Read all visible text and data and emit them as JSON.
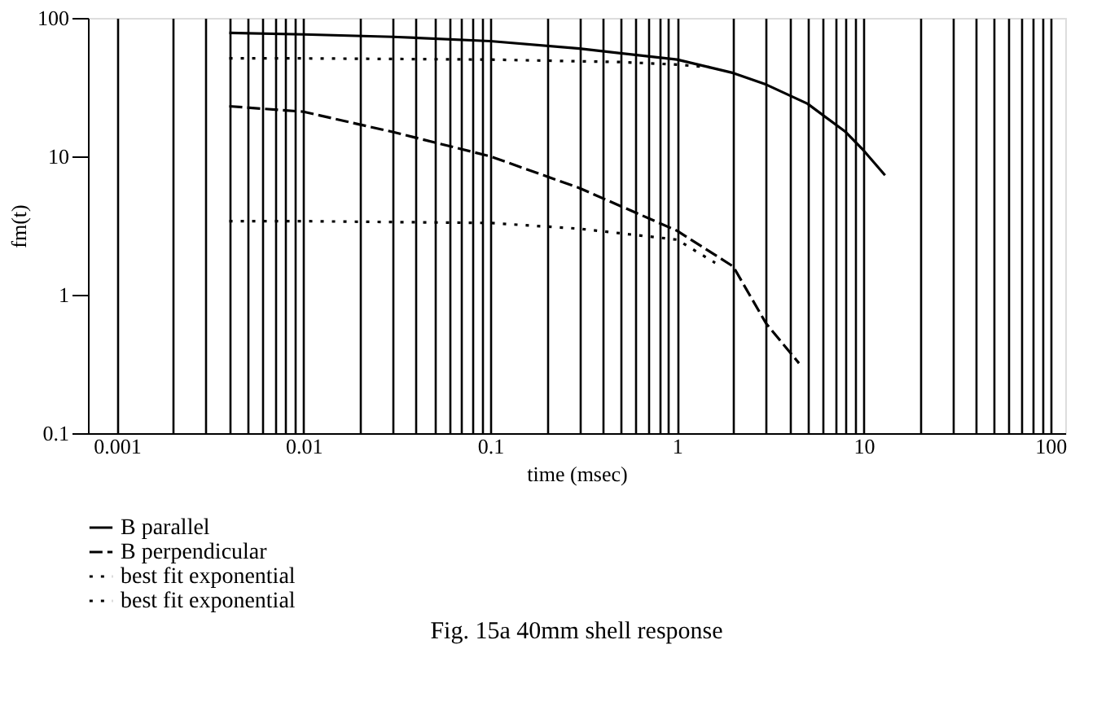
{
  "chart_data": {
    "type": "line",
    "title": "Fig. 15a  40mm shell response",
    "xlabel": "time (msec)",
    "ylabel": "fm(t)",
    "log": "xy",
    "grid": "x",
    "legend": "bottom",
    "xlim": [
      0.0007,
      120
    ],
    "ylim": [
      0.1,
      100
    ],
    "xticks": [
      {
        "value": 0.001,
        "label": "0.001"
      },
      {
        "value": 0.002,
        "label": null
      },
      {
        "value": 0.003,
        "label": null
      },
      {
        "value": 0.004,
        "label": null
      },
      {
        "value": 0.005,
        "label": null
      },
      {
        "value": 0.006,
        "label": null
      },
      {
        "value": 0.007,
        "label": null
      },
      {
        "value": 0.008,
        "label": null
      },
      {
        "value": 0.009,
        "label": null
      },
      {
        "value": 0.01,
        "label": "0.01"
      },
      {
        "value": 0.02,
        "label": null
      },
      {
        "value": 0.03,
        "label": null
      },
      {
        "value": 0.04,
        "label": null
      },
      {
        "value": 0.05,
        "label": null
      },
      {
        "value": 0.06,
        "label": null
      },
      {
        "value": 0.07,
        "label": null
      },
      {
        "value": 0.08,
        "label": null
      },
      {
        "value": 0.09,
        "label": null
      },
      {
        "value": 0.1,
        "label": "0.1"
      },
      {
        "value": 0.2,
        "label": null
      },
      {
        "value": 0.3,
        "label": null
      },
      {
        "value": 0.4,
        "label": null
      },
      {
        "value": 0.5,
        "label": null
      },
      {
        "value": 0.6,
        "label": null
      },
      {
        "value": 0.7,
        "label": null
      },
      {
        "value": 0.8,
        "label": null
      },
      {
        "value": 0.9,
        "label": null
      },
      {
        "value": 1,
        "label": "1"
      },
      {
        "value": 2,
        "label": null
      },
      {
        "value": 3,
        "label": null
      },
      {
        "value": 4,
        "label": null
      },
      {
        "value": 5,
        "label": null
      },
      {
        "value": 6,
        "label": null
      },
      {
        "value": 7,
        "label": null
      },
      {
        "value": 8,
        "label": null
      },
      {
        "value": 9,
        "label": null
      },
      {
        "value": 10,
        "label": "10"
      },
      {
        "value": 20,
        "label": null
      },
      {
        "value": 30,
        "label": null
      },
      {
        "value": 40,
        "label": null
      },
      {
        "value": 50,
        "label": null
      },
      {
        "value": 60,
        "label": null
      },
      {
        "value": 70,
        "label": null
      },
      {
        "value": 80,
        "label": null
      },
      {
        "value": 90,
        "label": null
      },
      {
        "value": 100,
        "label": "100"
      }
    ],
    "yticks": [
      0.1,
      1,
      10,
      100
    ],
    "series": [
      {
        "name": "B parallel",
        "color": "#000000",
        "line_style": "solid",
        "x": [
          0.004,
          0.01,
          0.03,
          0.1,
          0.3,
          1,
          2,
          3,
          5,
          8,
          10,
          13
        ],
        "values": [
          78,
          76,
          73,
          68,
          60,
          50,
          40,
          33,
          24,
          15,
          11,
          7.3
        ]
      },
      {
        "name": "B perpendicular",
        "color": "#000000",
        "line_style": "dashed",
        "x": [
          0.004,
          0.01,
          0.03,
          0.1,
          0.3,
          1,
          2,
          3,
          4.5
        ],
        "values": [
          23,
          21,
          15,
          10,
          5.9,
          2.9,
          1.6,
          0.62,
          0.32
        ]
      },
      {
        "name": "best fit exponential",
        "color": "#000000",
        "line_style": "dotted",
        "x": [
          0.004,
          0.01,
          0.1,
          0.5,
          1,
          1.5
        ],
        "values": [
          51,
          51,
          50,
          48,
          46,
          44
        ]
      },
      {
        "name": "best fit exponential",
        "color": "#000000",
        "line_style": "dotted",
        "x": [
          0.004,
          0.01,
          0.1,
          0.3,
          1,
          1.6
        ],
        "values": [
          3.4,
          3.4,
          3.3,
          3.0,
          2.5,
          1.7
        ]
      }
    ]
  }
}
